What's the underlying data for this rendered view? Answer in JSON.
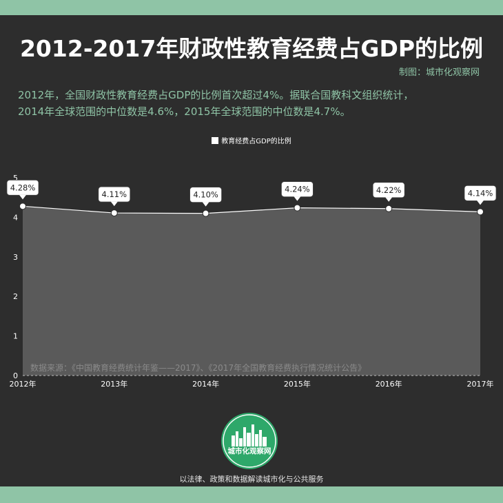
{
  "header": {
    "title": "2012-2017年财政性教育经费占GDP的比例",
    "credit": "制图：城市化观察网"
  },
  "description": {
    "line1": "2012年，全国财政性教育经费占GDP的比例首次超过4%。据联合国教科文组织统计，",
    "line2": "2014年全球范围的中位数是4.6%，2015年全球范围的中位数是4.7%。"
  },
  "source": "数据来源：《中国教育经费统计年鉴——2017》、《2017年全国教育经费执行情况统计公告》",
  "footer": {
    "logo_text": "城市化观察网",
    "slogan": "以法律、政策和数据解读城市化与公共服务"
  },
  "colors": {
    "accent": "#8fc4a6",
    "background": "#2d2d2d",
    "area": "#5a5a5a",
    "line": "#ffffff"
  },
  "chart_data": {
    "type": "area",
    "categories": [
      "2012年",
      "2013年",
      "2014年",
      "2015年",
      "2016年",
      "2017年"
    ],
    "series": [
      {
        "name": "教育经费占GDP的比例",
        "values": [
          4.28,
          4.11,
          4.1,
          4.24,
          4.22,
          4.14
        ],
        "labels": [
          "4.28%",
          "4.11%",
          "4.10%",
          "4.24%",
          "4.22%",
          "4.14%"
        ]
      }
    ],
    "y_ticks": [
      "0",
      "1",
      "2",
      "3",
      "4",
      "5"
    ],
    "ylim": [
      0,
      5
    ],
    "legend_position": "top-center",
    "grid": false
  }
}
